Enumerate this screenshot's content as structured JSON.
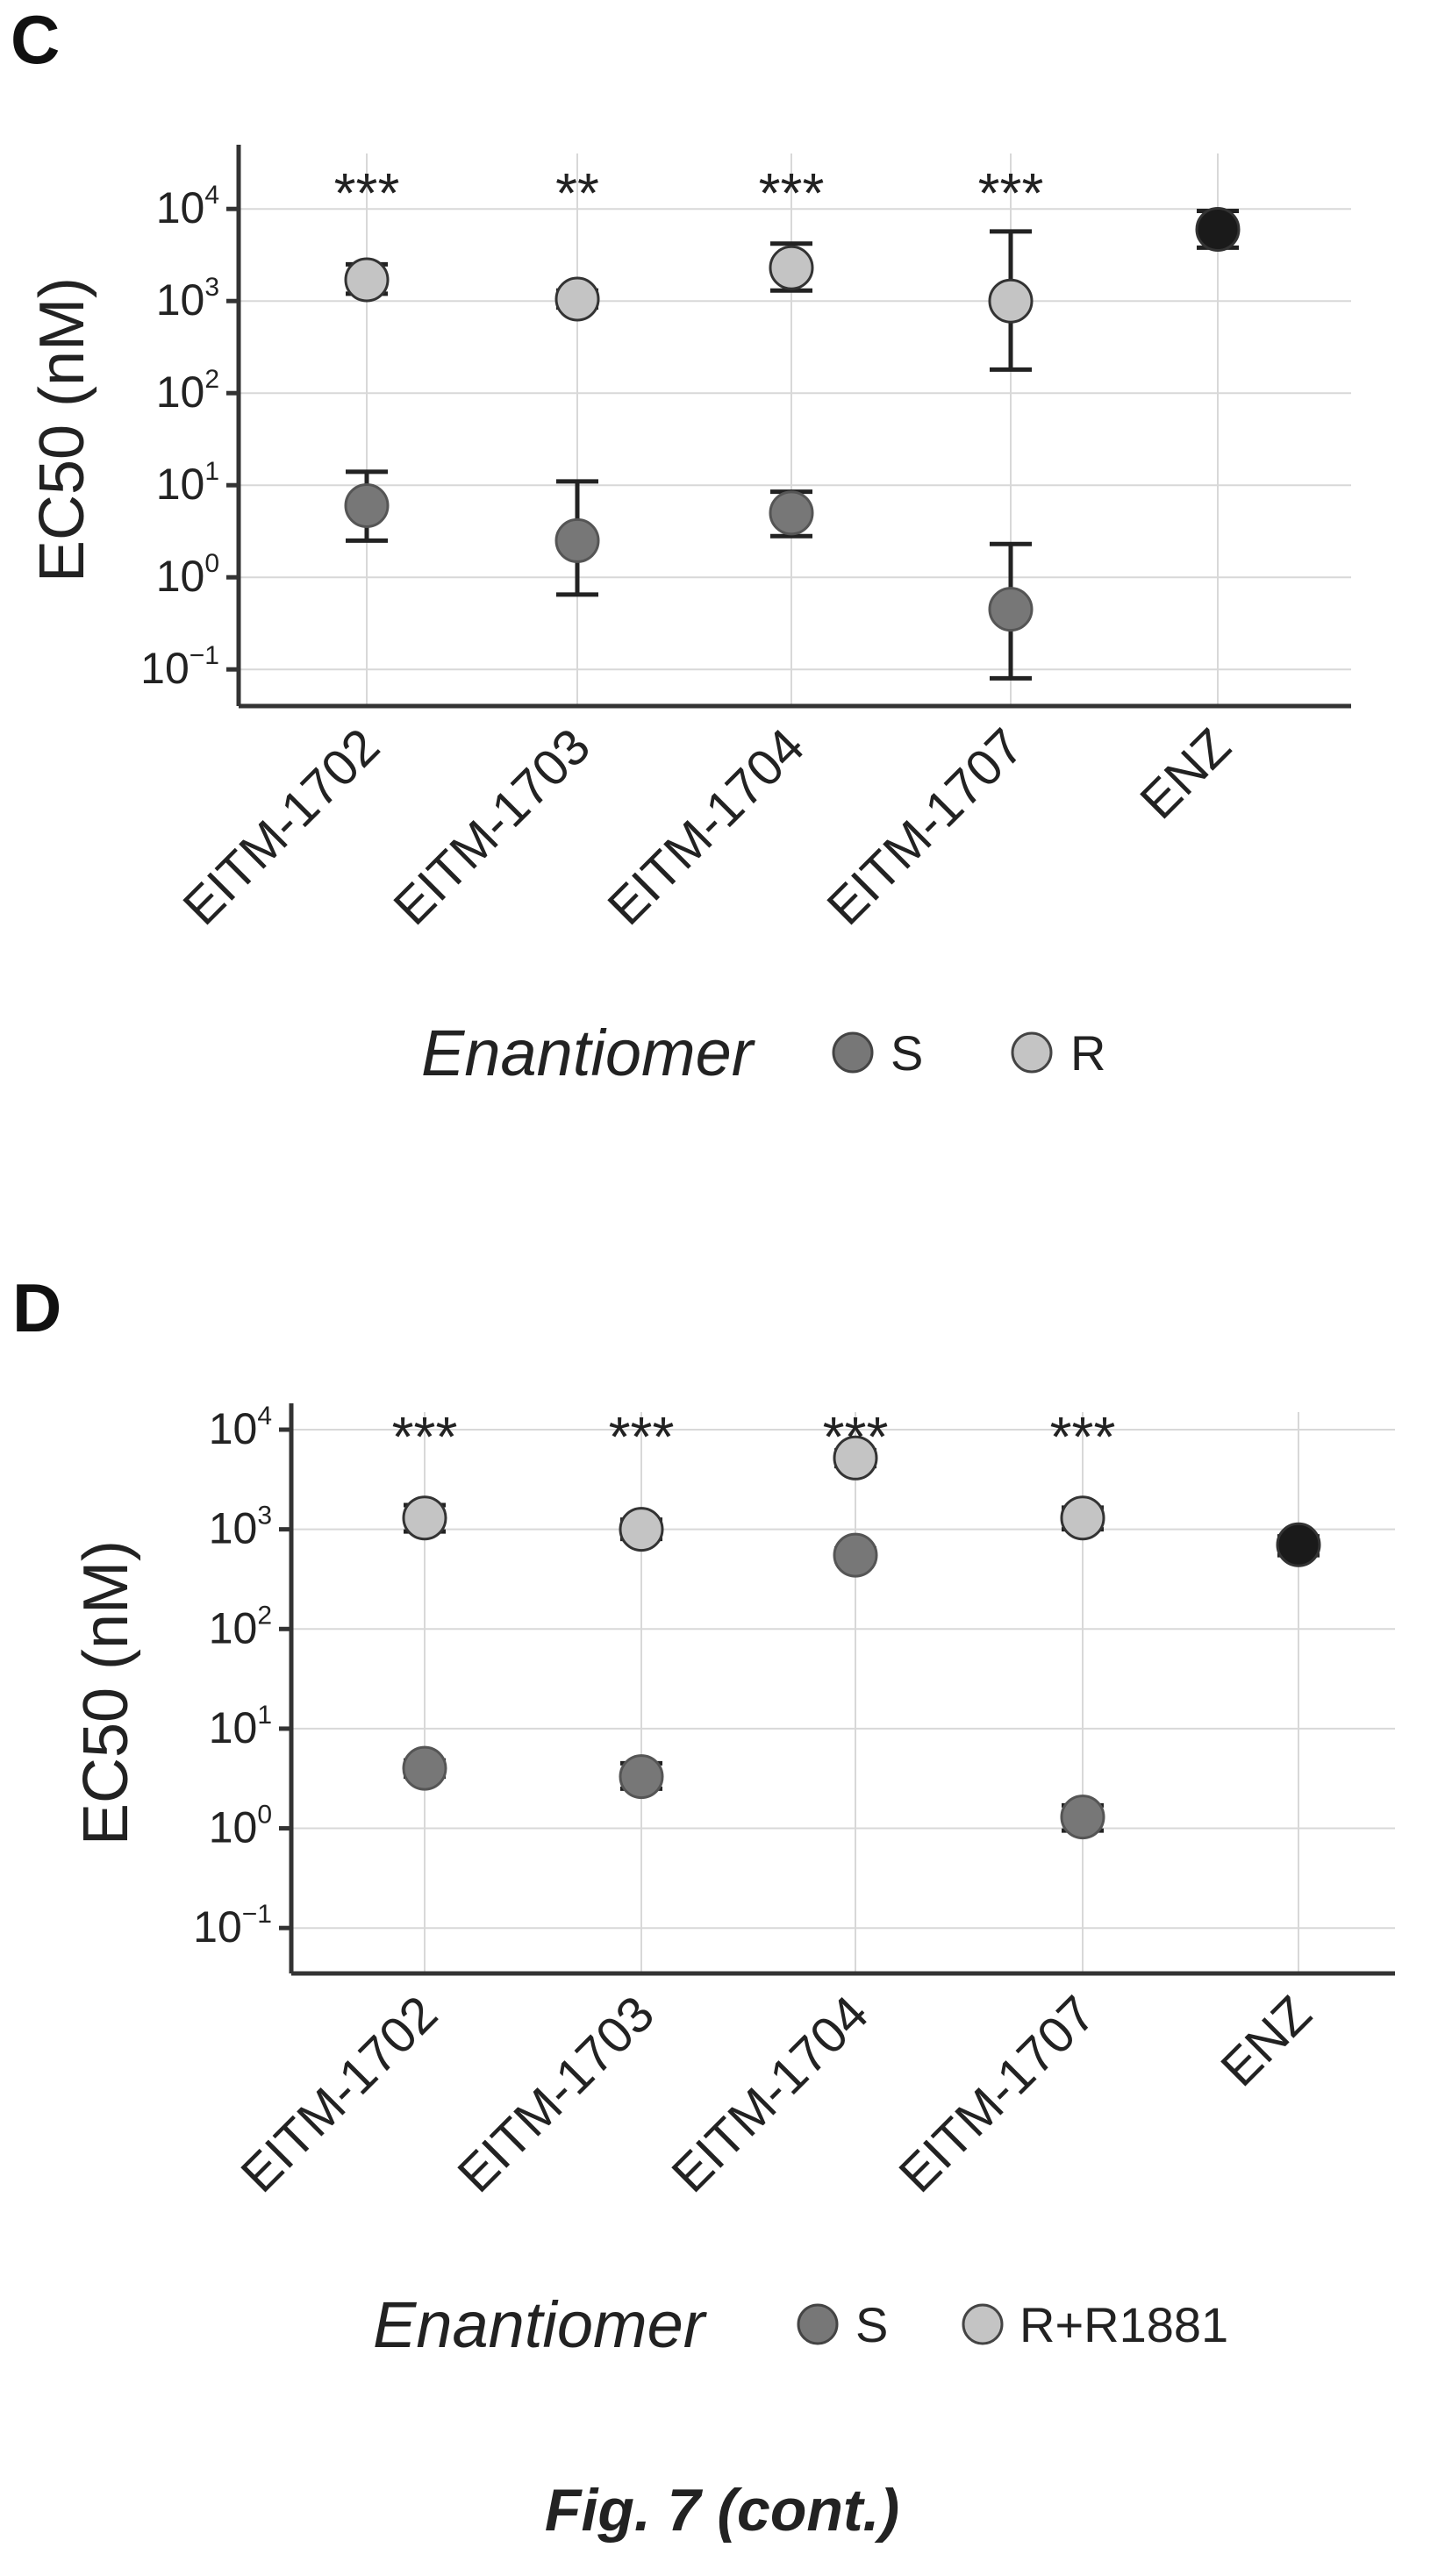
{
  "caption": "Fig. 7 (cont.)",
  "chart_data": [
    {
      "panel": "C",
      "type": "scatter",
      "ylabel": "EC50 (nM)",
      "yscale": "log",
      "ylim": [
        0.04,
        40000
      ],
      "yticks": [
        {
          "value": 0.1,
          "base": "10",
          "exp": "−1"
        },
        {
          "value": 1,
          "base": "10",
          "exp": "0"
        },
        {
          "value": 10,
          "base": "10",
          "exp": "1"
        },
        {
          "value": 100,
          "base": "10",
          "exp": "2"
        },
        {
          "value": 1000,
          "base": "10",
          "exp": "3"
        },
        {
          "value": 10000,
          "base": "10",
          "exp": "4"
        }
      ],
      "categories": [
        "EITM-1702",
        "EITM-1703",
        "EITM-1704",
        "EITM-1707",
        "ENZ"
      ],
      "grid": true,
      "legend": {
        "title": "Enantiomer",
        "position": "bottom",
        "entries": [
          "S",
          "R"
        ]
      },
      "colors": {
        "S": "#777777",
        "R": "#c4c4c4",
        "ENZ": "#1a1a1a"
      },
      "series": [
        {
          "name": "S",
          "points": [
            {
              "category": "EITM-1702",
              "y": 6,
              "ymin": 2.5,
              "ymax": 14
            },
            {
              "category": "EITM-1703",
              "y": 2.5,
              "ymin": 0.65,
              "ymax": 11
            },
            {
              "category": "EITM-1704",
              "y": 5,
              "ymin": 2.8,
              "ymax": 8.5
            },
            {
              "category": "EITM-1707",
              "y": 0.45,
              "ymin": 0.08,
              "ymax": 2.3
            }
          ]
        },
        {
          "name": "R",
          "points": [
            {
              "category": "EITM-1702",
              "y": 1700,
              "ymin": 1200,
              "ymax": 2500
            },
            {
              "category": "EITM-1703",
              "y": 1050,
              "ymin": 850,
              "ymax": 1300
            },
            {
              "category": "EITM-1704",
              "y": 2300,
              "ymin": 1300,
              "ymax": 4200
            },
            {
              "category": "EITM-1707",
              "y": 1000,
              "ymin": 180,
              "ymax": 5700
            }
          ]
        },
        {
          "name": "",
          "points": [
            {
              "category": "ENZ",
              "y": 6000,
              "ymin": 3800,
              "ymax": 9500
            }
          ]
        }
      ],
      "annotations": [
        {
          "category": "EITM-1702",
          "text": "***"
        },
        {
          "category": "EITM-1703",
          "text": "**"
        },
        {
          "category": "EITM-1704",
          "text": "***"
        },
        {
          "category": "EITM-1707",
          "text": "***"
        }
      ]
    },
    {
      "panel": "D",
      "type": "scatter",
      "ylabel": "EC50 (nM)",
      "yscale": "log",
      "ylim": [
        0.035,
        15000
      ],
      "yticks": [
        {
          "value": 0.1,
          "base": "10",
          "exp": "−1"
        },
        {
          "value": 1,
          "base": "10",
          "exp": "0"
        },
        {
          "value": 10,
          "base": "10",
          "exp": "1"
        },
        {
          "value": 100,
          "base": "10",
          "exp": "2"
        },
        {
          "value": 1000,
          "base": "10",
          "exp": "3"
        },
        {
          "value": 10000,
          "base": "10",
          "exp": "4"
        }
      ],
      "categories": [
        "EITM-1702",
        "EITM-1703",
        "EITM-1704",
        "EITM-1707",
        "ENZ"
      ],
      "grid": true,
      "legend": {
        "title": "Enantiomer",
        "position": "bottom",
        "entries": [
          "S",
          "R+R1881"
        ]
      },
      "colors": {
        "S": "#777777",
        "R+R1881": "#c4c4c4",
        "ENZ": "#1a1a1a"
      },
      "series": [
        {
          "name": "S",
          "points": [
            {
              "category": "EITM-1702",
              "y": 4,
              "ymin": 3.3,
              "ymax": 4.8
            },
            {
              "category": "EITM-1703",
              "y": 3.3,
              "ymin": 2.5,
              "ymax": 4.5
            },
            {
              "category": "EITM-1704",
              "y": 550,
              "ymin": 480,
              "ymax": 640
            },
            {
              "category": "EITM-1707",
              "y": 1.3,
              "ymin": 0.95,
              "ymax": 1.7
            }
          ]
        },
        {
          "name": "R+R1881",
          "points": [
            {
              "category": "EITM-1702",
              "y": 1300,
              "ymin": 950,
              "ymax": 1750
            },
            {
              "category": "EITM-1703",
              "y": 1000,
              "ymin": 800,
              "ymax": 1250
            },
            {
              "category": "EITM-1704",
              "y": 5200,
              "ymin": 4300,
              "ymax": 6200
            },
            {
              "category": "EITM-1707",
              "y": 1300,
              "ymin": 1000,
              "ymax": 1650
            }
          ]
        },
        {
          "name": "",
          "points": [
            {
              "category": "ENZ",
              "y": 700,
              "ymin": 550,
              "ymax": 850
            }
          ]
        }
      ],
      "annotations": [
        {
          "category": "EITM-1702",
          "text": "***"
        },
        {
          "category": "EITM-1703",
          "text": "***"
        },
        {
          "category": "EITM-1704",
          "text": "***"
        },
        {
          "category": "EITM-1707",
          "text": "***"
        }
      ]
    }
  ]
}
